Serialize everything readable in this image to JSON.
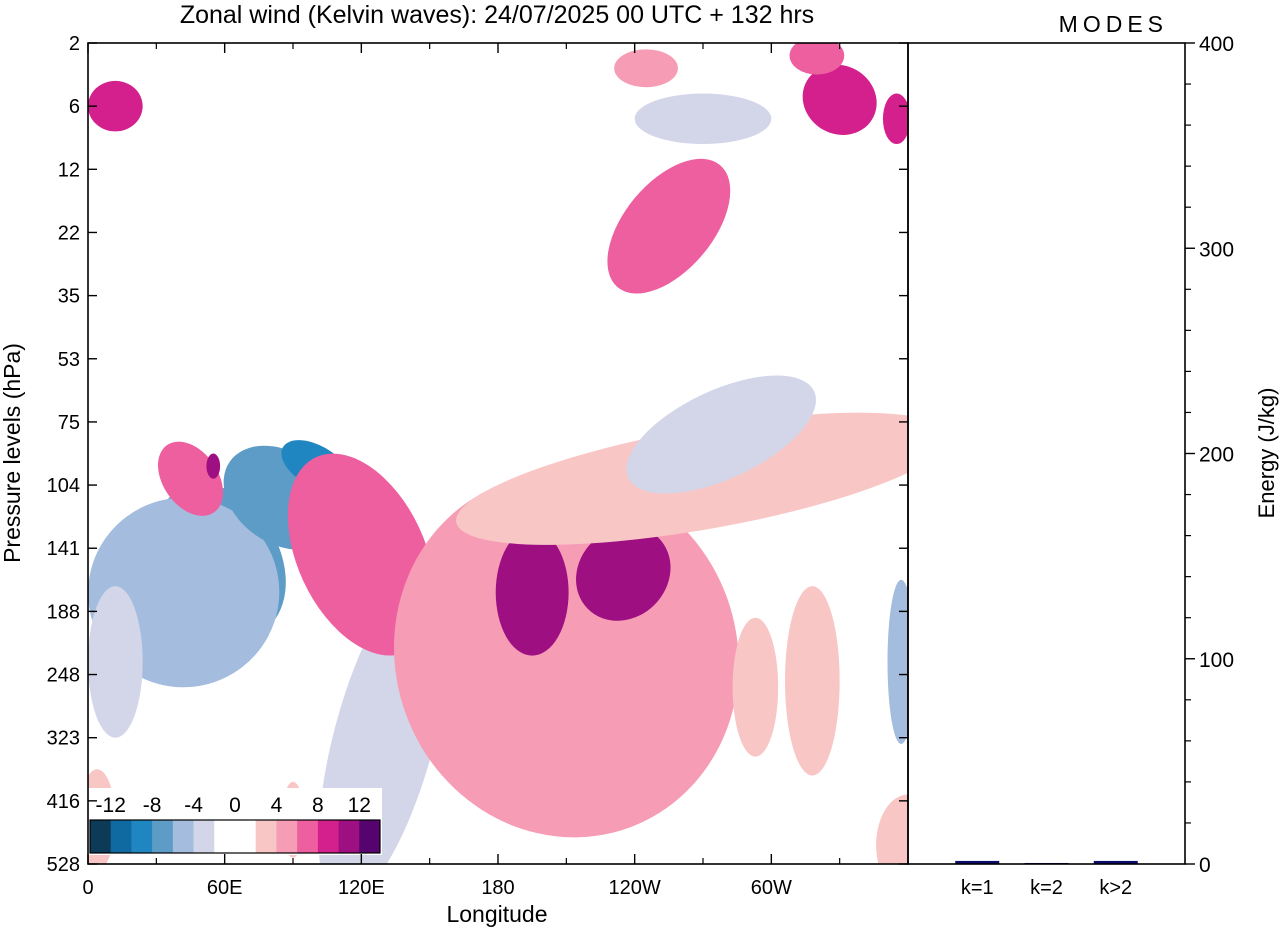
{
  "title": "Zonal wind (Kelvin waves):  24/07/2025  00 UTC  + 132 hrs",
  "logo": "MODES",
  "chart_data": [
    {
      "type": "heatmap",
      "xlabel": "Longitude",
      "ylabel": "Pressure levels (hPa)",
      "x_ticks": [
        {
          "label": "0",
          "lon": 0
        },
        {
          "label": "60E",
          "lon": 60
        },
        {
          "label": "120E",
          "lon": 120
        },
        {
          "label": "180",
          "lon": 180
        },
        {
          "label": "120W",
          "lon": 240
        },
        {
          "label": "60W",
          "lon": 300
        }
      ],
      "xlim": [
        0,
        360
      ],
      "y_levels": [
        "2",
        "6",
        "12",
        "22",
        "35",
        "53",
        "75",
        "104",
        "141",
        "188",
        "248",
        "323",
        "416",
        "528"
      ],
      "colorbar": {
        "labels": [
          "-12",
          "-8",
          "-4",
          "0",
          "4",
          "8",
          "12"
        ],
        "colors": [
          "#0d3a56",
          "#0e6aa0",
          "#1f86c2",
          "#5e9cc8",
          "#a4bcdd",
          "#d3d6e8",
          "#ffffff",
          "#ffffff",
          "#f9c6c6",
          "#f79cb5",
          "#ee5fa0",
          "#d4208c",
          "#9e0f82",
          "#55036e"
        ]
      },
      "blobs": [
        {
          "lon": 50,
          "lev": 8.55,
          "rx": 9,
          "ry": 0.75,
          "rot": -25,
          "value": -14
        },
        {
          "lon": 58,
          "lev": 8.2,
          "rx": 26,
          "ry": 1.3,
          "rot": -30,
          "value": -8
        },
        {
          "lon": 42,
          "lev": 8.7,
          "rx": 42,
          "ry": 1.5,
          "rot": -15,
          "value": -5
        },
        {
          "lon": 85,
          "lev": 7.2,
          "rx": 20,
          "ry": 1.0,
          "rot": -55,
          "value": -8
        },
        {
          "lon": 100,
          "lev": 6.7,
          "rx": 9,
          "ry": 0.6,
          "rot": -60,
          "value": -10
        },
        {
          "lon": 12,
          "lev": 9.8,
          "rx": 12,
          "ry": 1.2,
          "rot": 0,
          "value": -4
        },
        {
          "lon": 60,
          "lev": 3.9,
          "rx": 70,
          "ry": 0.9,
          "rot": 0,
          "value": -2
        },
        {
          "lon": 125,
          "lev": 10.7,
          "rx": 12,
          "ry": 1.9,
          "rot": 15,
          "value": -8
        },
        {
          "lon": 130,
          "lev": 11.0,
          "rx": 22,
          "ry": 2.7,
          "rot": 15,
          "value": -4
        },
        {
          "lon": 45,
          "lev": 6.9,
          "rx": 12,
          "ry": 0.65,
          "rot": -35,
          "value": 6
        },
        {
          "lon": 55,
          "lev": 6.7,
          "rx": 3,
          "ry": 0.2,
          "rot": 0,
          "value": 10
        },
        {
          "lon": 118,
          "lev": 7.8,
          "rx": 14,
          "ry": 0.9,
          "rot": -30,
          "value": 12
        },
        {
          "lon": 120,
          "lev": 8.1,
          "rx": 28,
          "ry": 1.7,
          "rot": -25,
          "value": 6
        },
        {
          "lon": 200,
          "lev": 9.2,
          "rx": 50,
          "ry": 1.8,
          "rot": -25,
          "value": 6
        },
        {
          "lon": 210,
          "lev": 9.7,
          "rx": 75,
          "ry": 2.9,
          "rot": -20,
          "value": 4
        },
        {
          "lon": 195,
          "lev": 8.7,
          "rx": 16,
          "ry": 1.0,
          "rot": 0,
          "value": 10
        },
        {
          "lon": 235,
          "lev": 8.4,
          "rx": 22,
          "ry": 0.7,
          "rot": -45,
          "value": 10
        },
        {
          "lon": 270,
          "lev": 6.9,
          "rx": 110,
          "ry": 0.8,
          "rot": -10,
          "value": 3
        },
        {
          "lon": 255,
          "lev": 2.9,
          "rx": 35,
          "ry": 0.7,
          "rot": -50,
          "value": 6
        },
        {
          "lon": 330,
          "lev": 0.9,
          "rx": 15,
          "ry": 0.6,
          "rot": -60,
          "value": 8
        },
        {
          "lon": 12,
          "lev": 1.0,
          "rx": 12,
          "ry": 0.4,
          "rot": 0,
          "value": 8
        },
        {
          "lon": 355,
          "lev": 1.2,
          "rx": 6,
          "ry": 0.4,
          "rot": 0,
          "value": 8
        },
        {
          "lon": 320,
          "lev": 0.2,
          "rx": 12,
          "ry": 0.3,
          "rot": 0,
          "value": 6
        },
        {
          "lon": 245,
          "lev": 0.4,
          "rx": 14,
          "ry": 0.3,
          "rot": 0,
          "value": 5
        },
        {
          "lon": 278,
          "lev": 6.2,
          "rx": 45,
          "ry": 0.7,
          "rot": -25,
          "value": -3
        },
        {
          "lon": 270,
          "lev": 1.2,
          "rx": 30,
          "ry": 0.4,
          "rot": 0,
          "value": -4
        },
        {
          "lon": 318,
          "lev": 10.1,
          "rx": 12,
          "ry": 1.5,
          "rot": 0,
          "value": 3
        },
        {
          "lon": 293,
          "lev": 10.2,
          "rx": 10,
          "ry": 1.1,
          "rot": 0,
          "value": 3
        },
        {
          "lon": 357,
          "lev": 9.8,
          "rx": 6,
          "ry": 1.3,
          "rot": 0,
          "value": -6
        },
        {
          "lon": 360,
          "lev": 12.7,
          "rx": 14,
          "ry": 0.8,
          "rot": 0,
          "value": 3
        },
        {
          "lon": 4,
          "lev": 12.3,
          "rx": 8,
          "ry": 0.8,
          "rot": 0,
          "value": 3
        },
        {
          "lon": 90,
          "lev": 12.3,
          "rx": 5,
          "ry": 0.6,
          "rot": 0,
          "value": 3
        }
      ]
    },
    {
      "type": "bar",
      "categories": [
        "k=1",
        "k=2",
        "k>2"
      ],
      "values": [
        1.5,
        0.5,
        1.5
      ],
      "ylabel": "Energy (J/kg)",
      "ylim": [
        0,
        400
      ],
      "y_ticks": [
        "0",
        "100",
        "200",
        "300",
        "400"
      ],
      "bar_color": "#0b0b6e"
    }
  ]
}
